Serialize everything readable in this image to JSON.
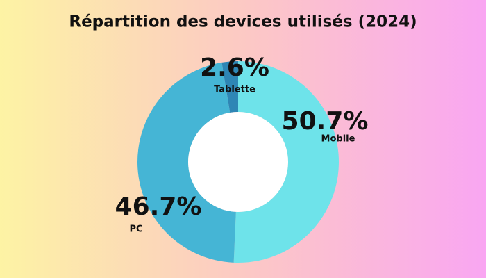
{
  "chart_data": {
    "type": "donut",
    "title": "Répartition des devices utilisés (2024)",
    "categories": [
      "Mobile",
      "PC",
      "Tablette"
    ],
    "values": [
      50.7,
      46.7,
      2.6
    ],
    "value_labels": [
      "50.7%",
      "46.7%",
      "2.6%"
    ],
    "colors": [
      "#6ee3ea",
      "#45b5d5",
      "#2e86b5"
    ]
  }
}
